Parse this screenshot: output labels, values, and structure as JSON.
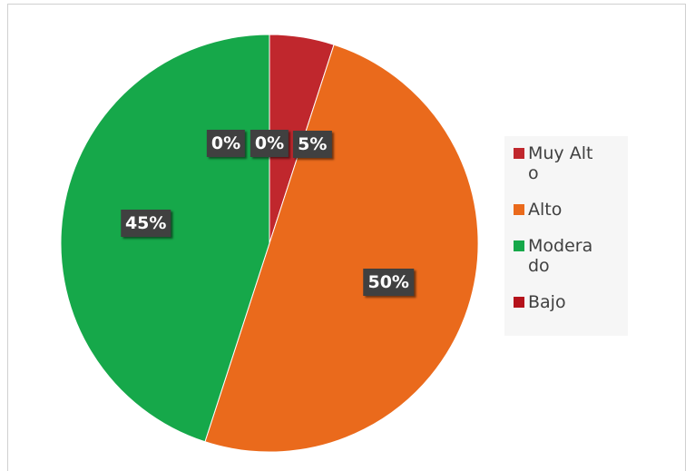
{
  "chart_data": {
    "type": "pie",
    "categories": [
      "Muy Alto",
      "Alto",
      "Moderado",
      "Bajo",
      null
    ],
    "values": [
      5,
      50,
      45,
      0,
      0
    ],
    "value_labels": [
      "5%",
      "50%",
      "45%",
      "0%",
      "0%"
    ],
    "colors": [
      "#c0272d",
      "#ea6a1c",
      "#16a84a",
      "#b5121b",
      "#8e1a1d"
    ],
    "legend": "right"
  }
}
